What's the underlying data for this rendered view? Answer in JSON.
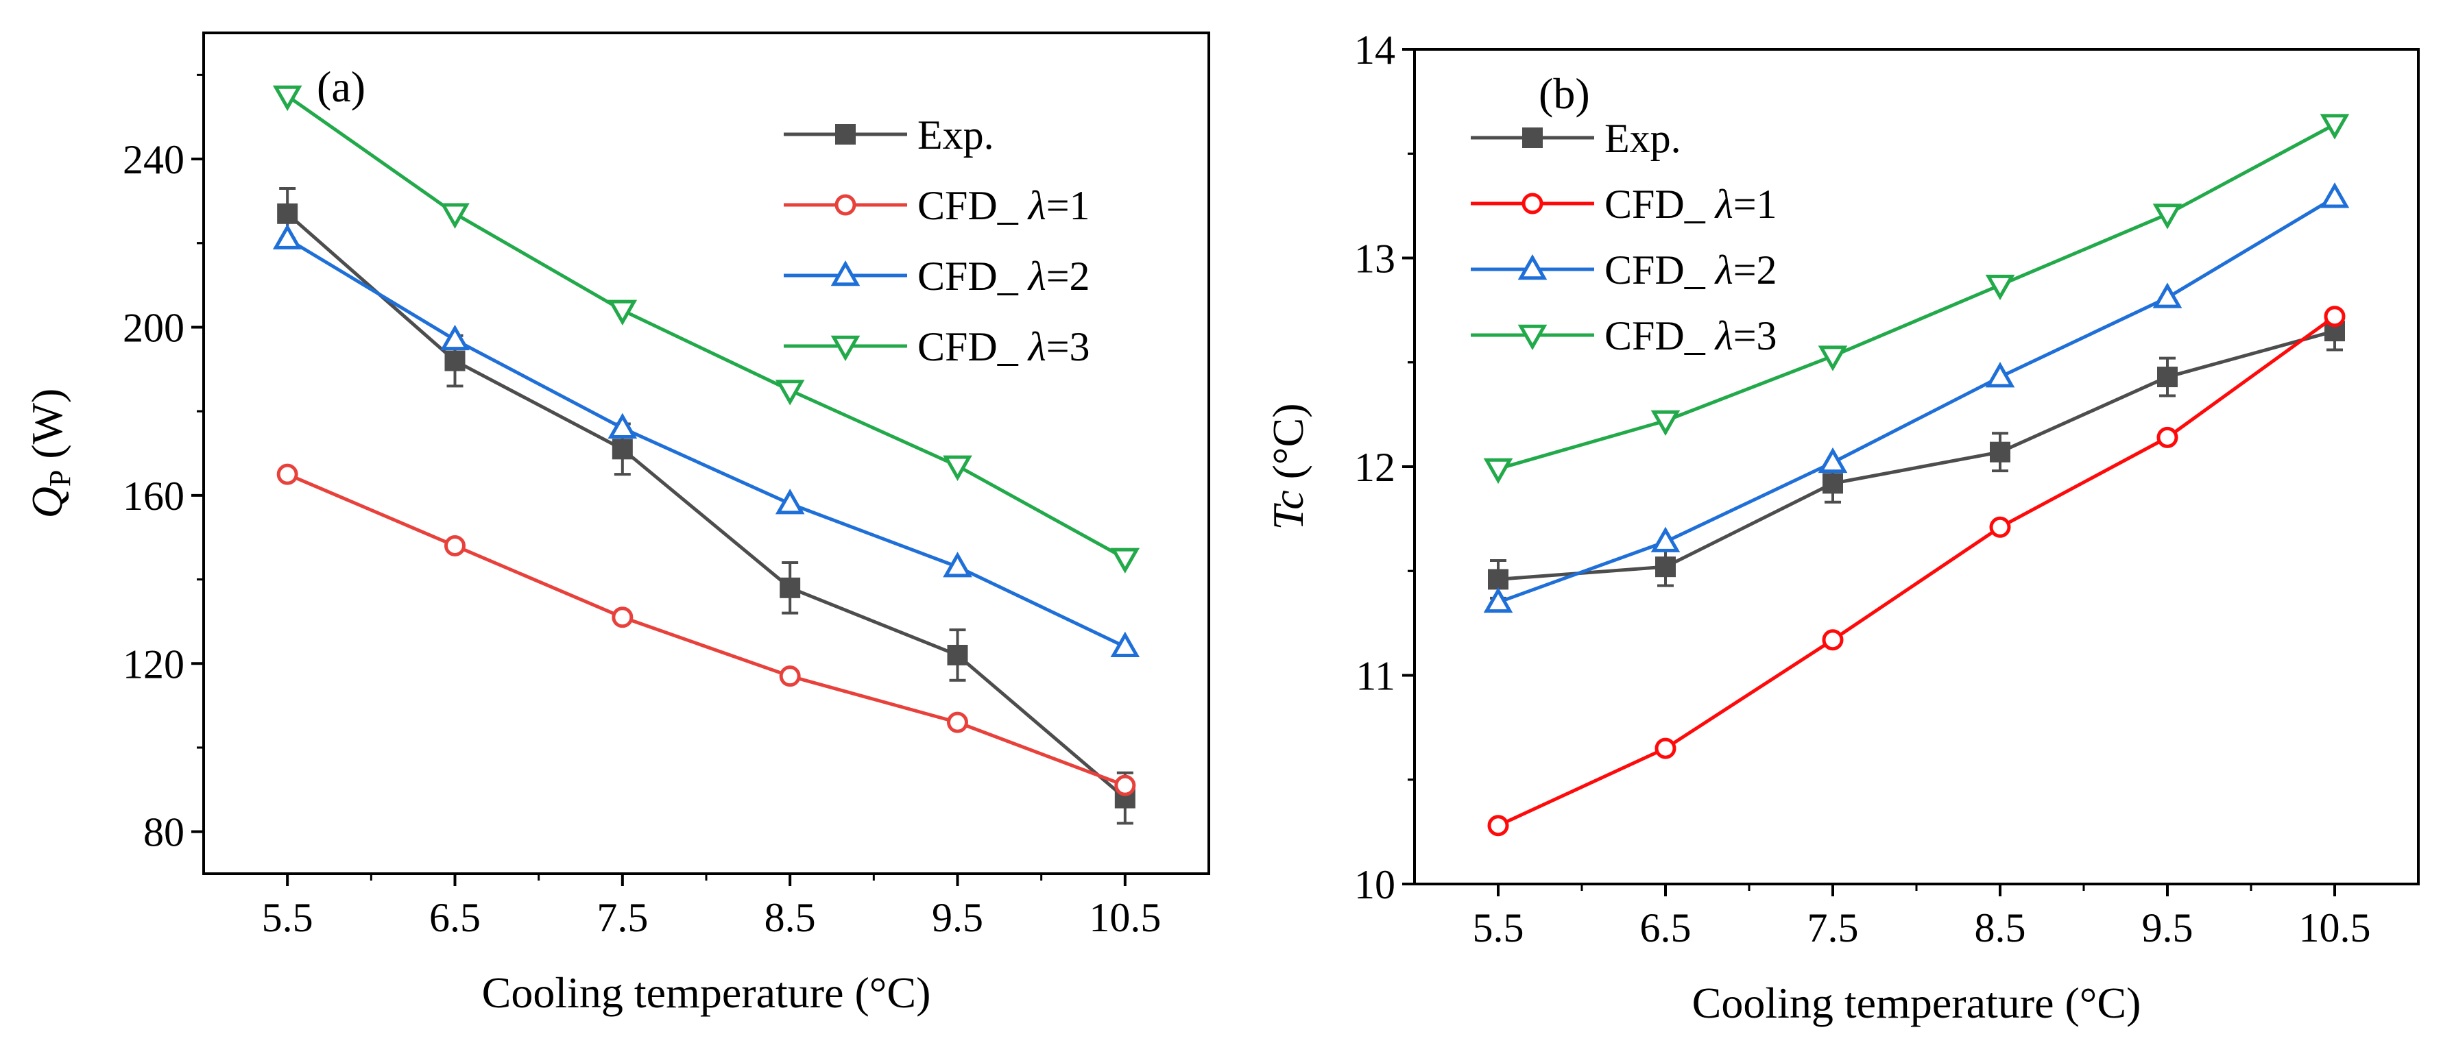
{
  "chart_data": [
    {
      "type": "line",
      "panel_label": "(a)",
      "xlabel": "Cooling temperature (°C)",
      "ylabel": {
        "symbol": "Q",
        "subscript": "P",
        "unit": " (W)"
      },
      "x": [
        5.5,
        6.5,
        7.5,
        8.5,
        9.5,
        10.5
      ],
      "x_ticks": [
        "5.5",
        "6.5",
        "7.5",
        "8.5",
        "9.5",
        "10.5"
      ],
      "xlim": [
        5.0,
        11.0
      ],
      "ylim": [
        70,
        270
      ],
      "y_ticks": [
        80,
        120,
        160,
        200,
        240
      ],
      "y_tick_labels": [
        "80",
        "120",
        "160",
        "200",
        "240"
      ],
      "legend_position": "top-right",
      "series": [
        {
          "name": "Exp.",
          "legend": {
            "prefix": "Exp.",
            "lambda": "",
            "suffix": ""
          },
          "color": "#4d4d4d",
          "marker": "square-filled",
          "values": [
            227,
            192,
            171,
            138,
            122,
            88
          ],
          "errors": [
            6,
            6,
            6,
            6,
            6,
            6
          ]
        },
        {
          "name": "CFD_ λ=1",
          "legend": {
            "prefix": "CFD_ ",
            "lambda": "λ",
            "suffix": "=1"
          },
          "color": "#e8413b",
          "marker": "circle-open",
          "values": [
            165,
            148,
            131,
            117,
            106,
            91
          ]
        },
        {
          "name": "CFD_ λ=2",
          "legend": {
            "prefix": "CFD_ ",
            "lambda": "λ",
            "suffix": "=2"
          },
          "color": "#1f6fd8",
          "marker": "triangle-up-open",
          "values": [
            221,
            197,
            176,
            158,
            143,
            124
          ]
        },
        {
          "name": "CFD_ λ=3",
          "legend": {
            "prefix": "CFD_ ",
            "lambda": "λ",
            "suffix": "=3"
          },
          "color": "#22a94a",
          "marker": "triangle-down-open",
          "values": [
            255,
            227,
            204,
            185,
            167,
            145
          ]
        }
      ]
    },
    {
      "type": "line",
      "panel_label": "(b)",
      "xlabel": "Cooling temperature (°C)",
      "ylabel": {
        "symbol": "Tc",
        "subscript": "",
        "unit": " (°C)"
      },
      "x": [
        5.5,
        6.5,
        7.5,
        8.5,
        9.5,
        10.5
      ],
      "x_ticks": [
        "5.5",
        "6.5",
        "7.5",
        "8.5",
        "9.5",
        "10.5"
      ],
      "xlim": [
        5.0,
        11.0
      ],
      "ylim": [
        10,
        14
      ],
      "y_ticks": [
        10,
        11,
        12,
        13,
        14
      ],
      "y_tick_labels": [
        "10",
        "11",
        "12",
        "13",
        "14"
      ],
      "legend_position": "top-left",
      "series": [
        {
          "name": "Exp.",
          "legend": {
            "prefix": "Exp.",
            "lambda": "",
            "suffix": ""
          },
          "color": "#4d4d4d",
          "marker": "square-filled",
          "values": [
            11.46,
            11.52,
            11.92,
            12.07,
            12.43,
            12.65
          ],
          "errors": [
            0.09,
            0.09,
            0.09,
            0.09,
            0.09,
            0.09
          ]
        },
        {
          "name": "CFD_ λ=1",
          "legend": {
            "prefix": "CFD_ ",
            "lambda": "λ",
            "suffix": "=1"
          },
          "color": "#ff0a0a",
          "marker": "circle-open",
          "values": [
            10.28,
            10.65,
            11.17,
            11.71,
            12.14,
            12.72
          ]
        },
        {
          "name": "CFD_ λ=2",
          "legend": {
            "prefix": "CFD_ ",
            "lambda": "λ",
            "suffix": "=2"
          },
          "color": "#1f6fd8",
          "marker": "triangle-up-open",
          "values": [
            11.35,
            11.64,
            12.02,
            12.43,
            12.81,
            13.29
          ]
        },
        {
          "name": "CFD_ λ=3",
          "legend": {
            "prefix": "CFD_ ",
            "lambda": "λ",
            "suffix": "=3"
          },
          "color": "#22a94a",
          "marker": "triangle-down-open",
          "values": [
            11.99,
            12.22,
            12.53,
            12.87,
            13.21,
            13.64
          ]
        }
      ]
    }
  ]
}
